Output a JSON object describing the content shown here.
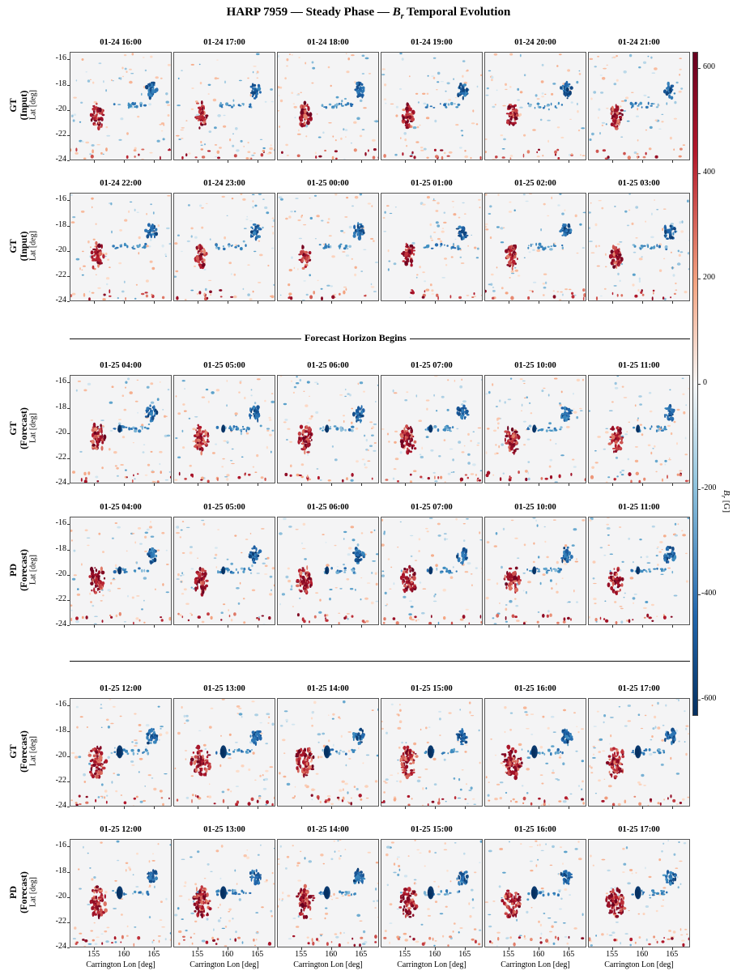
{
  "chart_data": {
    "type": "heatmap",
    "title": "HARP 7959 — Steady Phase — B_r Temporal Evolution",
    "title_parts": {
      "prefix": "HARP 7959 — Steady Phase — ",
      "symbol": "B",
      "subscript": "r",
      "suffix": " Temporal Evolution"
    },
    "xlabel": "Carrington Lon [deg]",
    "ylabel": "Lat [deg]",
    "xticks": [
      155,
      160,
      165
    ],
    "yticks": [
      -16,
      -18,
      -20,
      -22,
      -24
    ],
    "xlim": [
      151,
      168
    ],
    "ylim": [
      -24,
      -15.4
    ],
    "colorbar": {
      "label": "B_r [G]",
      "label_parts": {
        "symbol": "B",
        "subscript": "r",
        "unit": " [G]"
      },
      "range": [
        -630,
        630
      ],
      "ticks": [
        600,
        400,
        200,
        0,
        -200,
        -400,
        -600
      ],
      "colormap": "RdBu_r",
      "colors": {
        "positive": "#67001f",
        "zero": "#f7f7f7",
        "negative": "#053061"
      }
    },
    "separator_label": "Forecast Horizon Begins",
    "rows": [
      {
        "label": [
          "GT",
          "(Input)"
        ],
        "times": [
          "01-24 16:00",
          "01-24 17:00",
          "01-24 18:00",
          "01-24 19:00",
          "01-24 20:00",
          "01-24 21:00"
        ]
      },
      {
        "label": [
          "GT",
          "(Input)"
        ],
        "times": [
          "01-24 22:00",
          "01-24 23:00",
          "01-25 00:00",
          "01-25 01:00",
          "01-25 02:00",
          "01-25 03:00"
        ]
      },
      {
        "label": [
          "GT",
          "(Forecast)"
        ],
        "times": [
          "01-25 04:00",
          "01-25 05:00",
          "01-25 06:00",
          "01-25 07:00",
          "01-25 10:00",
          "01-25 11:00"
        ]
      },
      {
        "label": [
          "PD",
          "(Forecast)"
        ],
        "times": [
          "01-25 04:00",
          "01-25 05:00",
          "01-25 06:00",
          "01-25 07:00",
          "01-25 10:00",
          "01-25 11:00"
        ]
      },
      {
        "label": [
          "GT",
          "(Forecast)"
        ],
        "times": [
          "01-25 12:00",
          "01-25 13:00",
          "01-25 14:00",
          "01-25 15:00",
          "01-25 16:00",
          "01-25 17:00"
        ]
      },
      {
        "label": [
          "PD",
          "(Forecast)"
        ],
        "times": [
          "01-25 12:00",
          "01-25 13:00",
          "01-25 14:00",
          "01-25 15:00",
          "01-25 16:00",
          "01-25 17:00"
        ]
      }
    ],
    "features": {
      "positive_polarity": {
        "lon": 155.5,
        "lat": -20.4,
        "peak_G": 600
      },
      "negative_polarity_main": {
        "lon": 164.5,
        "lat": -18.4,
        "peak_G": -450
      },
      "negative_emerging": {
        "lon": 159.2,
        "lat": -19.6,
        "peak_G": -600
      }
    }
  }
}
